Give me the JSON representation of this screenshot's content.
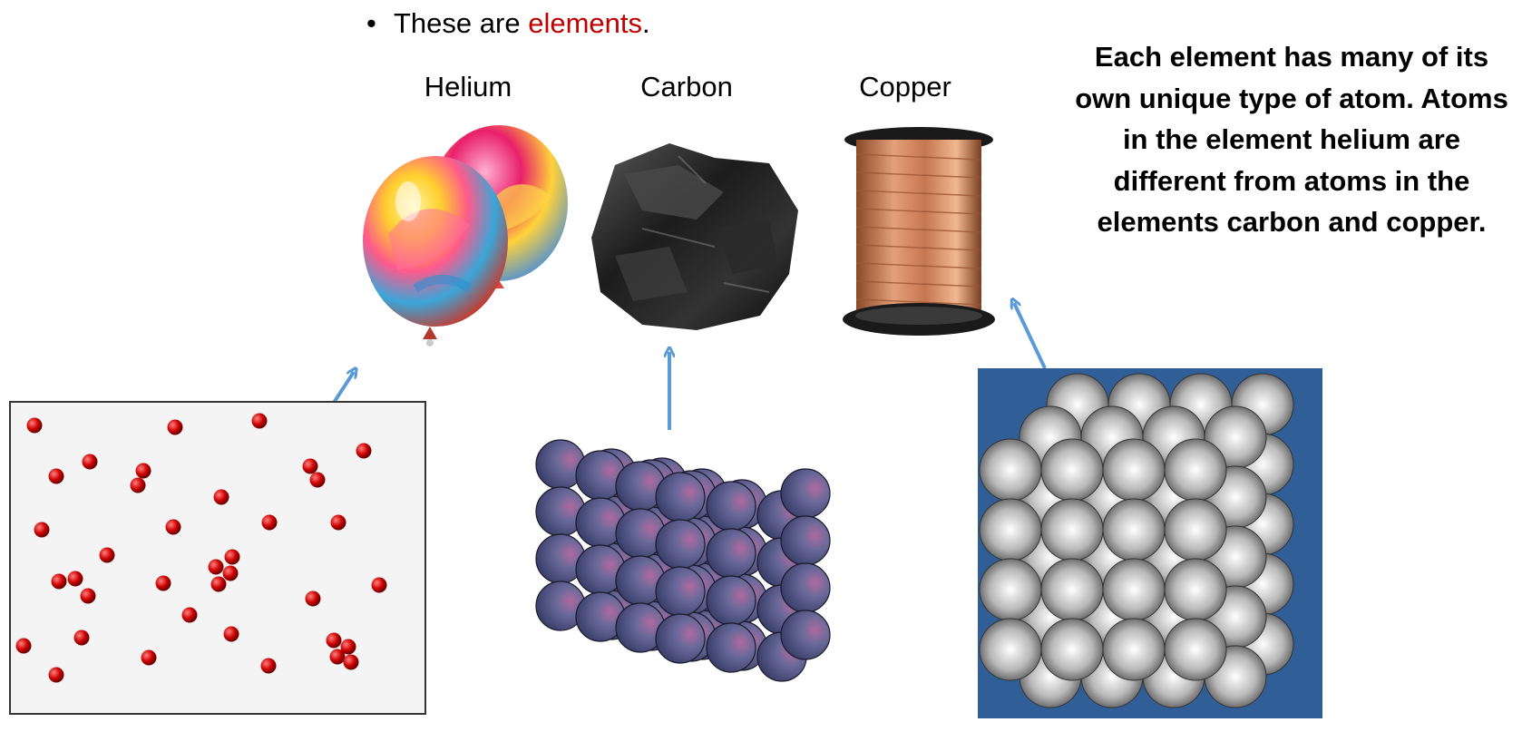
{
  "slide": {
    "bullet": {
      "prefix": "These are ",
      "highlight": "elements",
      "suffix": ".",
      "highlight_color": "#c00000"
    },
    "labels": {
      "helium": "Helium",
      "carbon": "Carbon",
      "copper": "Copper"
    },
    "explanation": "Each element has many of its own unique type of atom. Atoms in the element helium are different from atoms in the elements carbon and copper."
  },
  "colors": {
    "arrow": "#5b9bd5",
    "helium_atom": "#cc0000",
    "carbon_atom": "#5a5a8a",
    "copper_background": "#2f5f96",
    "copper_atom": "#b8b8b8",
    "box_background": "#f4f4f4"
  },
  "icons": {
    "balloons": "helium-balloons-photo",
    "coal": "carbon-coal-photo",
    "spool": "copper-wire-spool-photo"
  }
}
